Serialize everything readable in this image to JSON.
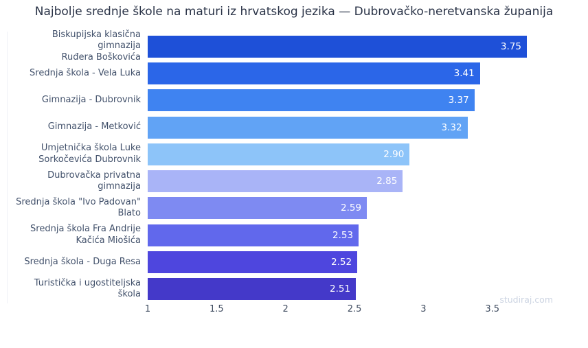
{
  "title": "Najbolje srednje škole na maturi iz hrvatskog jezika — Dubrovačko-neretvanska županija",
  "watermark": "studiraj.com",
  "colors": {
    "background": "#ffffff",
    "title_text": "#2a3347",
    "category_text": "#42516b",
    "tick_text": "#3d4a5e",
    "value_text": "#ffffff",
    "watermark_text": "#ccd4e2"
  },
  "chart_data": {
    "type": "bar",
    "orientation": "horizontal",
    "title": "Najbolje srednje škole na maturi iz hrvatskog jezika — Dubrovačko-neretvanska županija",
    "xlabel": "",
    "ylabel": "",
    "grid": false,
    "legend": false,
    "sorted": "descending",
    "xlim": [
      1,
      4.01
    ],
    "xticks": [
      "1",
      "1.5",
      "2",
      "2.5",
      "3",
      "3.5"
    ],
    "xtick_values": [
      1,
      1.5,
      2,
      2.5,
      3,
      3.5
    ],
    "categories": [
      "Biskupijska klasična gimnazija\nRuđera Boškovića",
      "Srednja škola - Vela Luka",
      "Gimnazija - Dubrovnik",
      "Gimnazija - Metković",
      "Umjetnička škola Luke\nSorkočevića Dubrovnik",
      "Dubrovačka privatna gimnazija",
      "Srednja škola \"Ivo Padovan\"\nBlato",
      "Srednja škola Fra Andrije\nKačića Miošića",
      "Srednja škola - Duga Resa",
      "Turistička i ugostiteljska\nškola"
    ],
    "values": [
      3.75,
      3.41,
      3.37,
      3.32,
      2.9,
      2.85,
      2.59,
      2.53,
      2.52,
      2.51
    ],
    "value_labels": [
      "3.75",
      "3.41",
      "3.37",
      "3.32",
      "2.90",
      "2.85",
      "2.59",
      "2.53",
      "2.52",
      "2.51"
    ],
    "bar_colors": [
      "#1e50d8",
      "#2b66e8",
      "#3f83f1",
      "#61a3f5",
      "#8dc4f9",
      "#a9b4f7",
      "#7e8af2",
      "#6168ec",
      "#4e46de",
      "#4439c9"
    ]
  }
}
